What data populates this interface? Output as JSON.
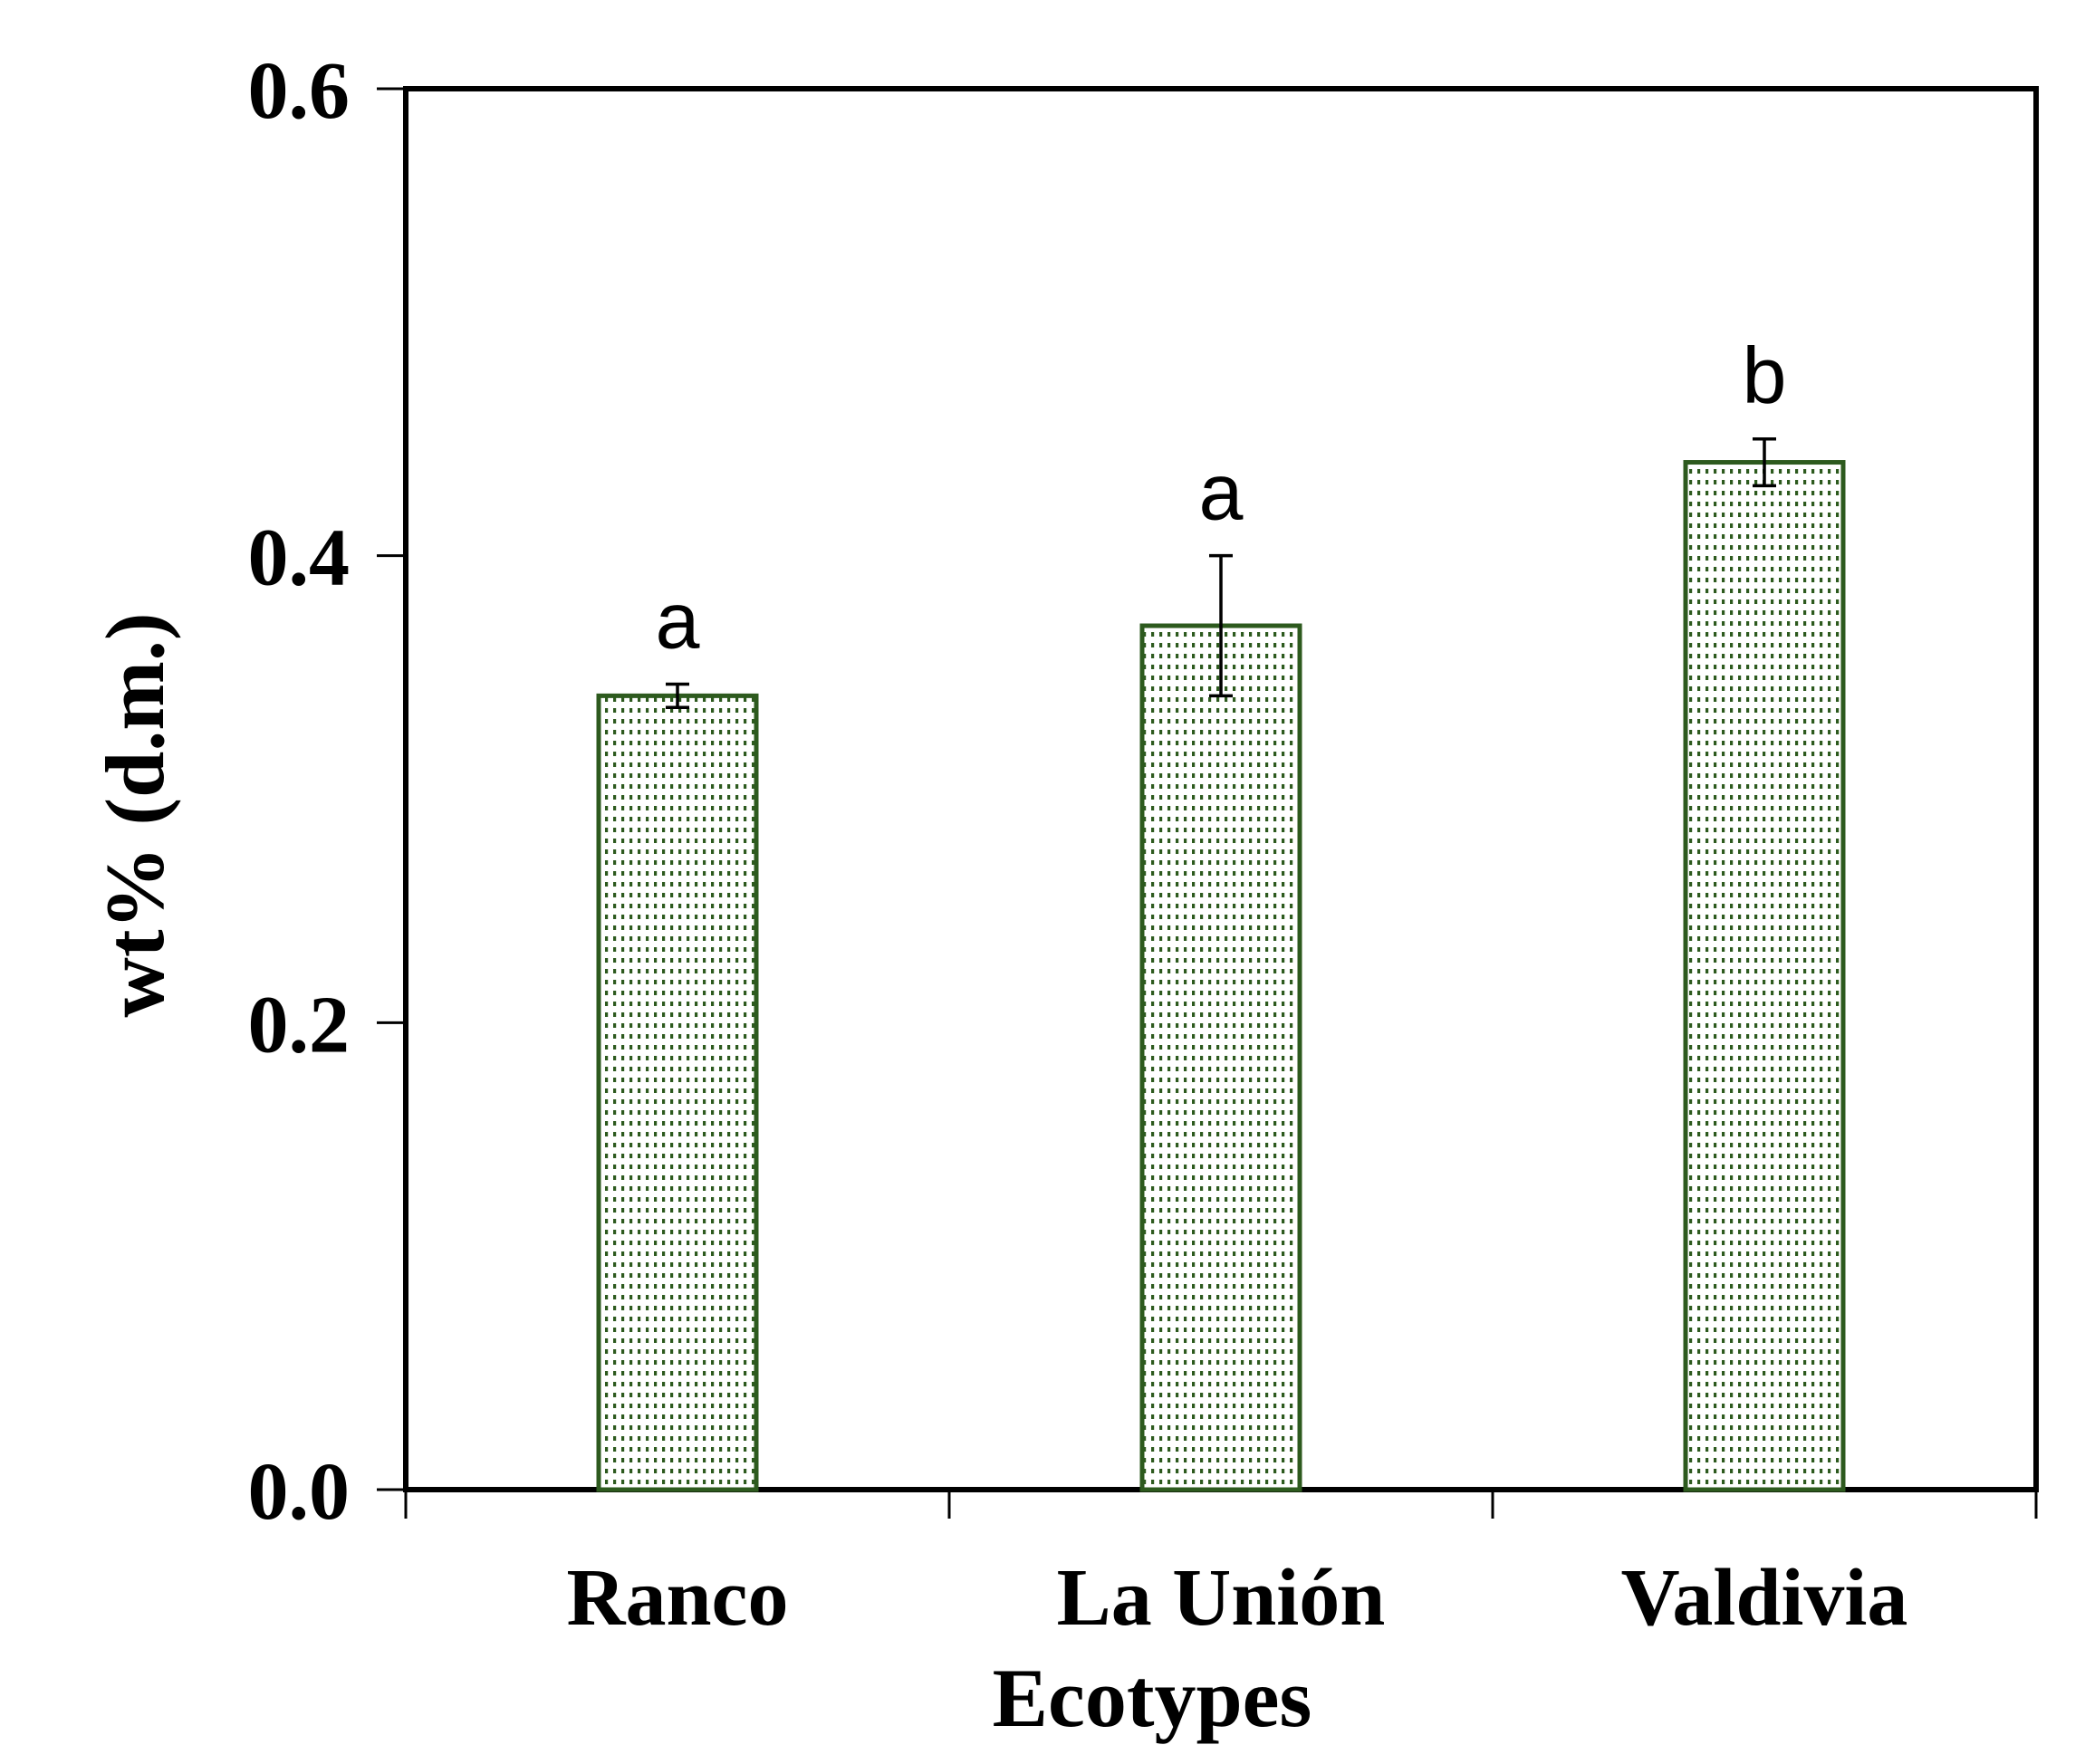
{
  "chart_data": {
    "type": "bar",
    "title": "",
    "xlabel": "Ecotypes",
    "ylabel": "wt% (d.m.)",
    "ylim": [
      0,
      0.6
    ],
    "yticks": [
      "0.0",
      "0.2",
      "0.4",
      "0.6"
    ],
    "categories": [
      "Ranco",
      "La Unión",
      "Valdivia"
    ],
    "values": [
      0.34,
      0.37,
      0.44
    ],
    "errors": [
      0.005,
      0.03,
      0.01
    ],
    "significance": [
      "a",
      "a",
      "b"
    ],
    "grid": false,
    "legend": "none",
    "colors": {
      "bar_edge": "#2d5a1e",
      "bar_fill": "#ffffff",
      "bar_dots": "#2d5a1e",
      "axis": "#000000"
    }
  }
}
